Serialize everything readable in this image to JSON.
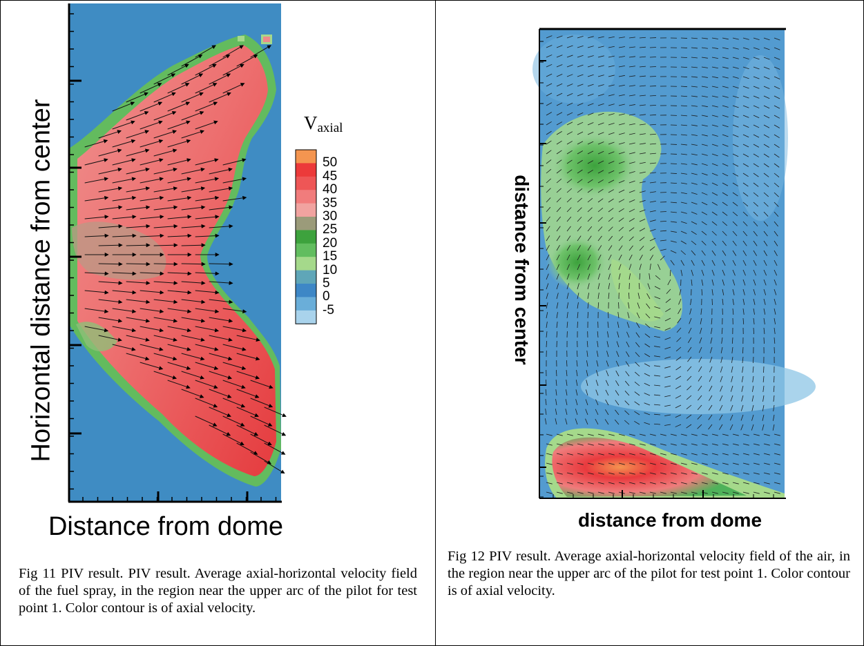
{
  "figures": [
    {
      "panel": "left",
      "ylabel": "Horizontal distance from center",
      "xlabel": "Distance from dome",
      "legend": {
        "title_main": "V",
        "title_sub": "axial",
        "levels": [
          "50",
          "45",
          "40",
          "35",
          "30",
          "25",
          "20",
          "15",
          "10",
          "5",
          "0",
          "-5"
        ],
        "colors": [
          "#f49550",
          "#ec3a3a",
          "#ee5656",
          "#f17c7c",
          "#f1a3a0",
          "#9b9b7a",
          "#3da23d",
          "#62bd5f",
          "#a5d98b",
          "#5fa6b8",
          "#3e87c6",
          "#6aaed9",
          "#a9d3ec"
        ]
      },
      "caption": "Fig 11 PIV result. PIV result. Average axial-horizontal velocity field of the fuel spray, in the region near the upper arc of the pilot for test point 1. Color contour is of axial velocity."
    },
    {
      "panel": "right",
      "ylabel": "distance from center",
      "xlabel": "distance from dome",
      "caption": "Fig 12 PIV result. Average axial-horizontal velocity field of the air, in the region near the upper arc of the pilot for test point 1. Color contour is of axial velocity."
    }
  ],
  "colors": {
    "background_blue": "#3f8cc3",
    "spray_red": "#ea3f42",
    "spray_pink": "#ef8a8a",
    "green_edge": "#5cba5a",
    "air_blue": "#4f98cf",
    "air_light": "#8ec5e5"
  }
}
